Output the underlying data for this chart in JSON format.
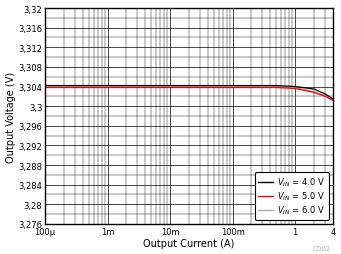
{
  "title": "",
  "xlabel": "Output Current (A)",
  "ylabel": "Output Voltage (V)",
  "xlim": [
    0.0001,
    4
  ],
  "ylim": [
    3.276,
    3.32
  ],
  "yticks": [
    3.276,
    3.28,
    3.284,
    3.288,
    3.292,
    3.296,
    3.3,
    3.304,
    3.308,
    3.312,
    3.316,
    3.32
  ],
  "ytick_labels": [
    "3,276",
    "3,28",
    "3,284",
    "3,288",
    "3,292",
    "3,296",
    "3,3",
    "3,304",
    "3,308",
    "3,312",
    "3,316",
    "3,32"
  ],
  "xtick_vals": [
    0.0001,
    0.001,
    0.01,
    0.1,
    1,
    4
  ],
  "xtick_labels": [
    "100μ",
    "1m",
    "10m",
    "100m",
    "1",
    "4"
  ],
  "legend_colors": [
    "black",
    "red",
    "#aaaaaa"
  ],
  "legend_labels": [
    "$V_{IN}$ = 4.0 V",
    "$V_{IN}$ = 5.0 V",
    "$V_{IN}$ = 6.0 V"
  ],
  "background_color": "#ffffff",
  "watermark": "C002",
  "lines": {
    "vin4": {
      "x": [
        0.0001,
        0.0002,
        0.0005,
        0.001,
        0.002,
        0.005,
        0.01,
        0.02,
        0.05,
        0.1,
        0.2,
        0.5,
        1.0,
        2.0,
        3.0,
        4.0
      ],
      "y": [
        3.3042,
        3.3042,
        3.3042,
        3.3042,
        3.3042,
        3.3042,
        3.3042,
        3.3042,
        3.3042,
        3.3042,
        3.3042,
        3.3042,
        3.304,
        3.3035,
        3.3025,
        3.3015
      ],
      "color": "black",
      "lw": 0.9
    },
    "vin5": {
      "x": [
        0.0001,
        0.0002,
        0.0005,
        0.001,
        0.002,
        0.005,
        0.01,
        0.02,
        0.05,
        0.1,
        0.2,
        0.5,
        1.0,
        2.0,
        3.0,
        4.0
      ],
      "y": [
        3.3038,
        3.3038,
        3.3038,
        3.3038,
        3.3038,
        3.3038,
        3.3038,
        3.3038,
        3.3038,
        3.3038,
        3.3038,
        3.3038,
        3.3036,
        3.3028,
        3.302,
        3.3012
      ],
      "color": "red",
      "lw": 0.9
    },
    "vin6": {
      "x": [
        0.0001,
        0.0002,
        0.0005,
        0.001,
        0.002,
        0.005,
        0.01,
        0.02,
        0.05,
        0.1,
        0.2,
        0.5,
        1.0,
        2.0,
        3.0,
        4.0
      ],
      "y": [
        3.304,
        3.304,
        3.304,
        3.304,
        3.304,
        3.304,
        3.304,
        3.304,
        3.304,
        3.304,
        3.304,
        3.304,
        3.3038,
        3.303,
        3.3022,
        3.3013
      ],
      "color": "#aaaaaa",
      "lw": 0.9
    }
  }
}
